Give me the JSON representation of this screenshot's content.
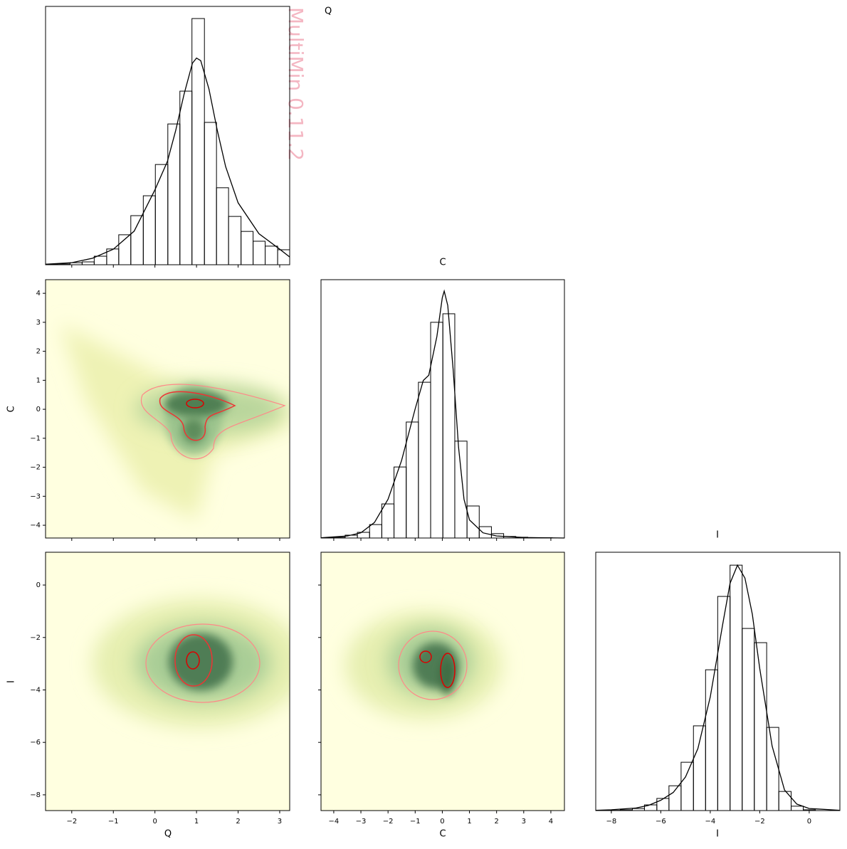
{
  "chart_data": [
    {
      "type": "histogram",
      "title": "Q",
      "annotation": "MultiMin 0.11.2",
      "bins": [
        -2.63,
        -2.34,
        -2.04,
        -1.75,
        -1.46,
        -1.16,
        -0.87,
        -0.58,
        -0.28,
        0.01,
        0.31,
        0.6,
        0.89,
        1.19,
        1.48,
        1.77,
        2.07,
        2.36,
        2.65,
        2.95,
        3.24
      ],
      "counts": [
        0.002,
        0.003,
        0.008,
        0.011,
        0.033,
        0.061,
        0.116,
        0.19,
        0.267,
        0.388,
        0.545,
        0.672,
        0.953,
        0.551,
        0.298,
        0.187,
        0.129,
        0.091,
        0.072,
        0.058
      ],
      "curve": {
        "x": [
          -2.63,
          -2,
          -1.5,
          -1,
          -0.5,
          0,
          0.3,
          0.5,
          0.7,
          0.9,
          1,
          1.1,
          1.3,
          1.5,
          1.7,
          2,
          2.5,
          3,
          3.24
        ],
        "y": [
          0.002,
          0.008,
          0.025,
          0.06,
          0.13,
          0.29,
          0.4,
          0.52,
          0.66,
          0.78,
          0.8,
          0.79,
          0.68,
          0.52,
          0.38,
          0.24,
          0.12,
          0.06,
          0.03
        ]
      },
      "xlim": [
        -2.63,
        3.24
      ],
      "ylim": [
        0,
        1
      ],
      "xticks": [
        -2,
        -1,
        0,
        1,
        2,
        3
      ],
      "color": "#000000"
    },
    {
      "type": "density",
      "ylabel": "C",
      "xlim": [
        -2.63,
        3.24
      ],
      "ylim": [
        -4.44,
        4.47
      ],
      "xticks": [
        -2,
        -1,
        0,
        1,
        2,
        3
      ],
      "yticks": [
        {
          "value": -4,
          "label": "−4"
        },
        {
          "value": -3,
          "label": "−3"
        },
        {
          "value": -2,
          "label": "−2"
        },
        {
          "value": -1,
          "label": "−1"
        },
        0,
        1,
        2,
        3,
        4
      ]
    },
    {
      "type": "histogram",
      "title": "C",
      "bins": [
        -4.47,
        -4.02,
        -3.58,
        -3.13,
        -2.68,
        -2.23,
        -1.78,
        -1.33,
        -0.88,
        -0.43,
        0.02,
        0.46,
        0.91,
        1.36,
        1.81,
        2.26,
        2.71,
        3.15,
        3.6,
        4.05,
        4.5
      ],
      "counts": [
        0.001,
        0.003,
        0.011,
        0.022,
        0.052,
        0.132,
        0.275,
        0.449,
        0.603,
        0.835,
        0.868,
        0.375,
        0.124,
        0.044,
        0.017,
        0.006,
        0.003,
        0.001,
        0.001,
        0
      ],
      "curve": {
        "x": [
          -4.47,
          -3.5,
          -3,
          -2.5,
          -2,
          -1.5,
          -1,
          -0.7,
          -0.5,
          -0.2,
          0,
          0.07,
          0.2,
          0.4,
          0.6,
          0.8,
          1,
          1.5,
          2,
          3,
          4.5
        ],
        "y": [
          0.001,
          0.008,
          0.02,
          0.06,
          0.15,
          0.3,
          0.5,
          0.61,
          0.63,
          0.78,
          0.93,
          0.956,
          0.9,
          0.65,
          0.35,
          0.15,
          0.07,
          0.02,
          0.008,
          0.002,
          0
        ]
      },
      "xlim": [
        -4.47,
        4.5
      ],
      "ylim": [
        0,
        1
      ],
      "xticks": [
        -4,
        -3,
        -2,
        -1,
        0,
        1,
        2,
        3,
        4
      ],
      "color": "#000000"
    },
    {
      "type": "density",
      "xlabel": "Q",
      "ylabel": "I",
      "xlim": [
        -2.63,
        3.24
      ],
      "ylim": [
        -8.6,
        1.25
      ],
      "xticks": [
        {
          "value": -2,
          "label": "−2"
        },
        {
          "value": -1,
          "label": "−1"
        },
        0,
        1,
        2,
        3
      ],
      "yticks": [
        {
          "value": -8,
          "label": "−8"
        },
        {
          "value": -6,
          "label": "−6"
        },
        {
          "value": -4,
          "label": "−4"
        },
        {
          "value": -2,
          "label": "−2"
        },
        0
      ]
    },
    {
      "type": "density",
      "xlabel": "C",
      "xlim": [
        -4.47,
        4.5
      ],
      "ylim": [
        -8.6,
        1.25
      ],
      "xticks": [
        {
          "value": -4,
          "label": "−4"
        },
        {
          "value": -3,
          "label": "−3"
        },
        {
          "value": -2,
          "label": "−2"
        },
        {
          "value": -1,
          "label": "−1"
        },
        0,
        1,
        2,
        3,
        4
      ],
      "yticks": [
        -8,
        -6,
        -4,
        -2,
        0
      ]
    },
    {
      "type": "histogram",
      "title": "I",
      "xlabel": "I",
      "bins": [
        -8.63,
        -8.14,
        -7.64,
        -7.15,
        -6.66,
        -6.16,
        -5.67,
        -5.18,
        -4.68,
        -4.19,
        -3.7,
        -3.2,
        -2.71,
        -2.22,
        -1.72,
        -1.23,
        -0.73,
        -0.24,
        0.25,
        0.75,
        1.24
      ],
      "counts": [
        0,
        0.001,
        0.003,
        0.008,
        0.022,
        0.047,
        0.096,
        0.187,
        0.328,
        0.545,
        0.829,
        0.95,
        0.705,
        0.65,
        0.322,
        0.074,
        0.017,
        0.003,
        0,
        0
      ],
      "curve": {
        "x": [
          -8.63,
          -8,
          -7,
          -6.5,
          -6,
          -5.5,
          -5,
          -4.5,
          -4,
          -3.5,
          -3.2,
          -2.9,
          -2.6,
          -2.3,
          -2,
          -1.5,
          -1,
          -0.5,
          0,
          1.24
        ],
        "y": [
          0.001,
          0.003,
          0.01,
          0.02,
          0.04,
          0.07,
          0.13,
          0.24,
          0.44,
          0.72,
          0.88,
          0.95,
          0.9,
          0.76,
          0.55,
          0.25,
          0.08,
          0.025,
          0.008,
          0.001
        ]
      },
      "xlim": [
        -8.63,
        1.24
      ],
      "ylim": [
        0,
        1
      ],
      "xticks": [
        {
          "value": -8,
          "label": "−8"
        },
        {
          "value": -6,
          "label": "−6"
        },
        {
          "value": -4,
          "label": "−4"
        },
        {
          "value": -2,
          "label": "−2"
        },
        0
      ],
      "color": "#000000"
    }
  ]
}
